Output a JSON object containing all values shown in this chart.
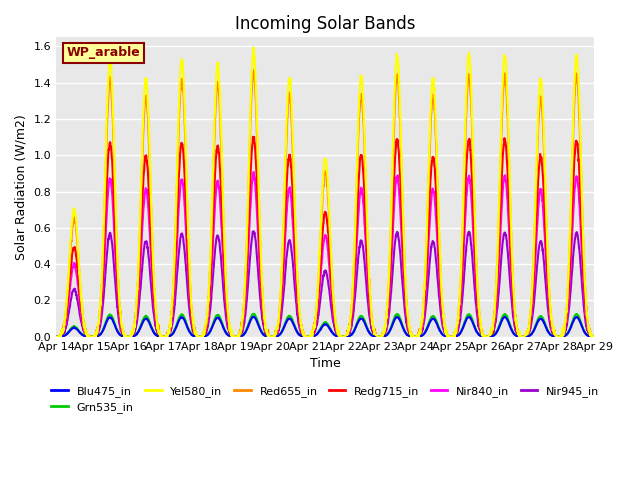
{
  "title": "Incoming Solar Bands",
  "xlabel": "Time",
  "ylabel": "Solar Radiation (W/m2)",
  "ylim": [
    0,
    1.65
  ],
  "yticks": [
    0.0,
    0.2,
    0.4,
    0.6,
    0.8,
    1.0,
    1.2,
    1.4,
    1.6
  ],
  "date_labels": [
    "Apr 14",
    "Apr 15",
    "Apr 16",
    "Apr 17",
    "Apr 18",
    "Apr 19",
    "Apr 20",
    "Apr 21",
    "Apr 22",
    "Apr 23",
    "Apr 24",
    "Apr 25",
    "Apr 26",
    "Apr 27",
    "Apr 28",
    "Apr 29"
  ],
  "station_label": "WP_arable",
  "series": {
    "Blu475_in": {
      "color": "#0000ff",
      "lw": 1.5
    },
    "Grn535_in": {
      "color": "#00cc00",
      "lw": 1.5
    },
    "Yel580_in": {
      "color": "#ffff00",
      "lw": 1.5
    },
    "Red655_in": {
      "color": "#ff8800",
      "lw": 1.5
    },
    "Redg715_in": {
      "color": "#ff0000",
      "lw": 1.5
    },
    "Nir840_in": {
      "color": "#ff00ff",
      "lw": 1.5
    },
    "Nir945_in": {
      "color": "#9900cc",
      "lw": 1.5
    }
  },
  "legend_order": [
    "Blu475_in",
    "Grn535_in",
    "Yel580_in",
    "Red655_in",
    "Redg715_in",
    "Nir840_in",
    "Nir945_in"
  ],
  "n_days": 15,
  "pts_per_day": 144,
  "peaks": [
    0.7,
    1.53,
    1.42,
    1.53,
    1.5,
    1.57,
    1.43,
    0.98,
    1.43,
    1.55,
    1.42,
    1.55,
    1.55,
    1.42,
    1.55
  ],
  "peak_ratios": {
    "Blu475_in": 0.07,
    "Grn535_in": 0.08,
    "Yel580_in": 1.0,
    "Red655_in": 0.93,
    "Redg715_in": 0.7,
    "Nir840_in": 0.57,
    "Nir945_in": 0.37
  },
  "bg_color": "#e8e8e8",
  "fig_bg": "#ffffff",
  "grid_color": "#ffffff",
  "grid_lw": 1.0
}
